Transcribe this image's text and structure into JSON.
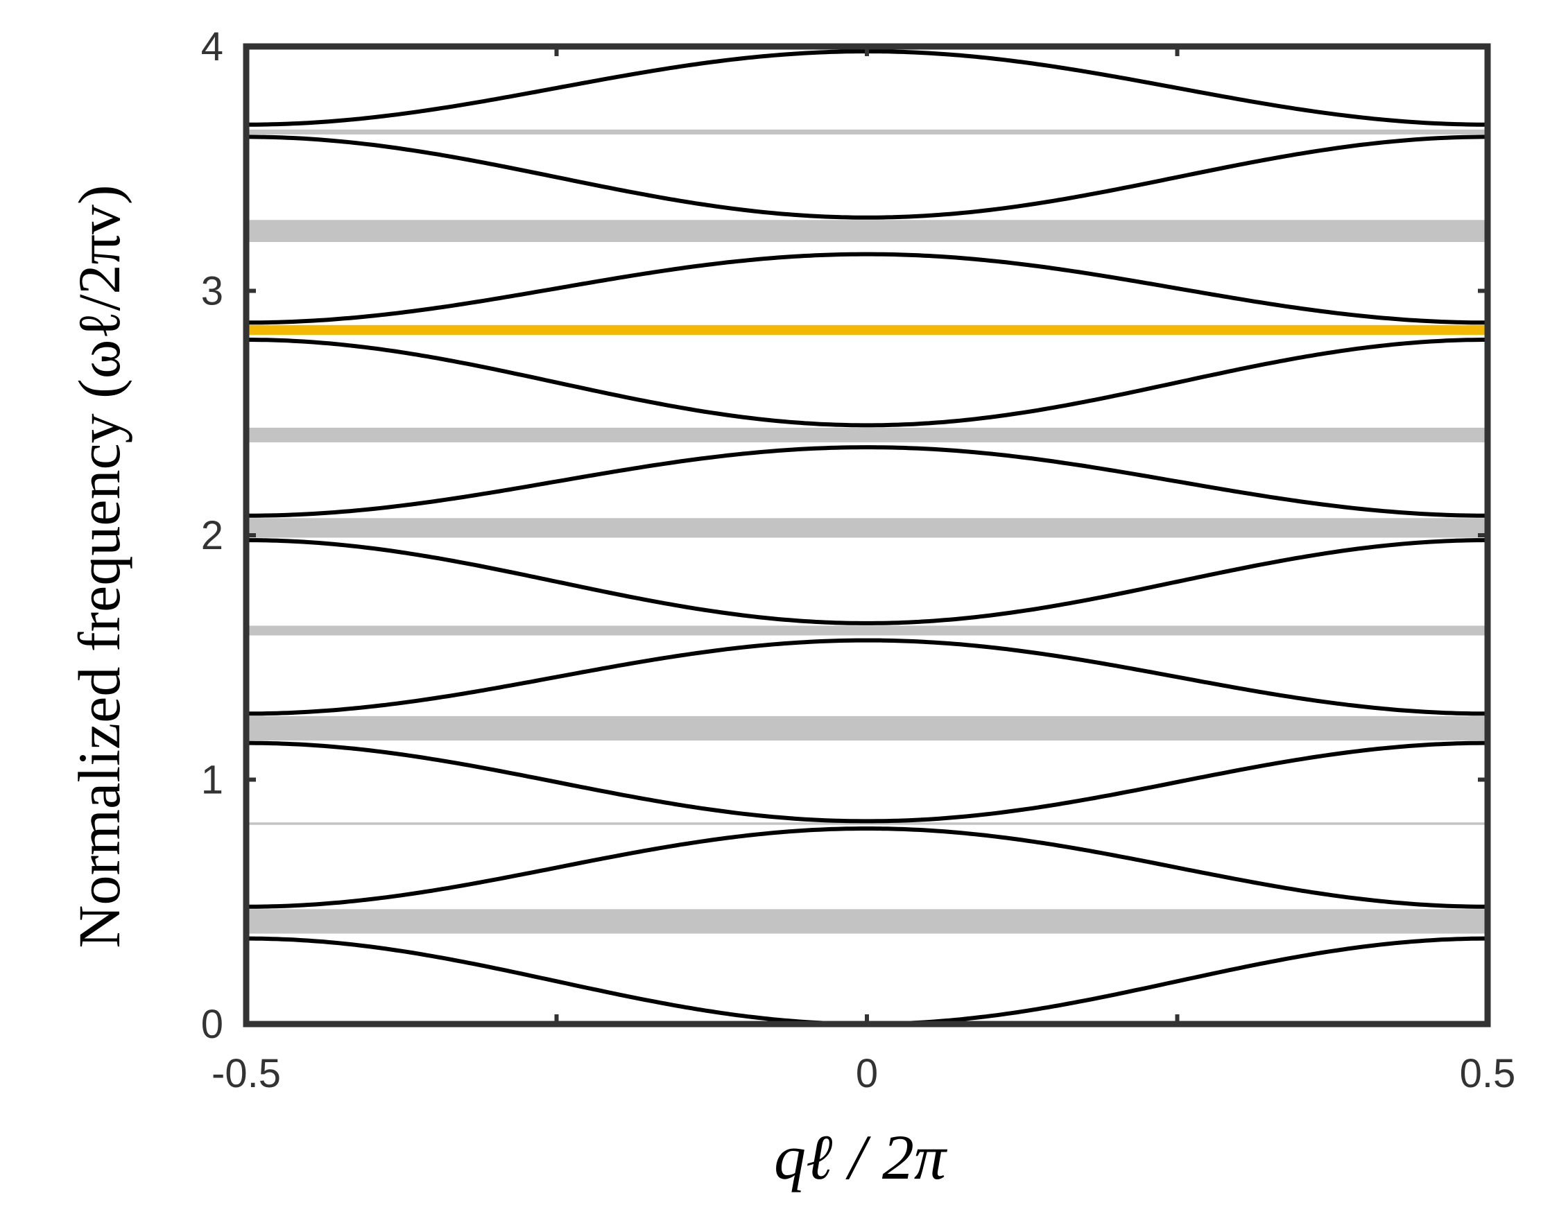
{
  "chart_data": {
    "type": "line",
    "title": "",
    "xlabel": "qℓ / 2π",
    "ylabel": "Normalized frequency (ωℓ/2πv)",
    "xlim": [
      -0.5,
      0.5
    ],
    "ylim": [
      0,
      4
    ],
    "x_ticks": [
      -0.5,
      0,
      0.5
    ],
    "x_tick_labels": [
      "-0.5",
      "0",
      "0.5"
    ],
    "y_ticks": [
      0,
      1,
      2,
      3,
      4
    ],
    "y_tick_labels": [
      "0",
      "1",
      "2",
      "3",
      "4"
    ],
    "grid": false,
    "band_edges": [
      {
        "lower": 0.0,
        "upper": 0.35
      },
      {
        "lower": 0.48,
        "upper": 0.8
      },
      {
        "lower": 0.83,
        "upper": 1.15
      },
      {
        "lower": 1.27,
        "upper": 1.57
      },
      {
        "lower": 1.64,
        "upper": 1.98
      },
      {
        "lower": 2.08,
        "upper": 2.36
      },
      {
        "lower": 2.45,
        "upper": 2.8
      },
      {
        "lower": 2.87,
        "upper": 3.15
      },
      {
        "lower": 3.3,
        "upper": 3.63
      },
      {
        "lower": 3.68,
        "upper": 3.98
      }
    ],
    "gray_bands": [
      {
        "y0": 0.37,
        "y1": 0.47
      },
      {
        "y0": 0.815,
        "y1": 0.825
      },
      {
        "y0": 1.16,
        "y1": 1.26
      },
      {
        "y0": 1.59,
        "y1": 1.63
      },
      {
        "y0": 1.99,
        "y1": 2.07
      },
      {
        "y0": 2.38,
        "y1": 2.44
      },
      {
        "y0": 3.2,
        "y1": 3.29
      },
      {
        "y0": 3.64,
        "y1": 3.66
      }
    ],
    "highlight_band": {
      "y0": 2.82,
      "y1": 2.86,
      "color": "#f5b800"
    },
    "colors": {
      "curve": "#000000",
      "gap": "#c3c3c3",
      "frame": "#333333"
    }
  }
}
